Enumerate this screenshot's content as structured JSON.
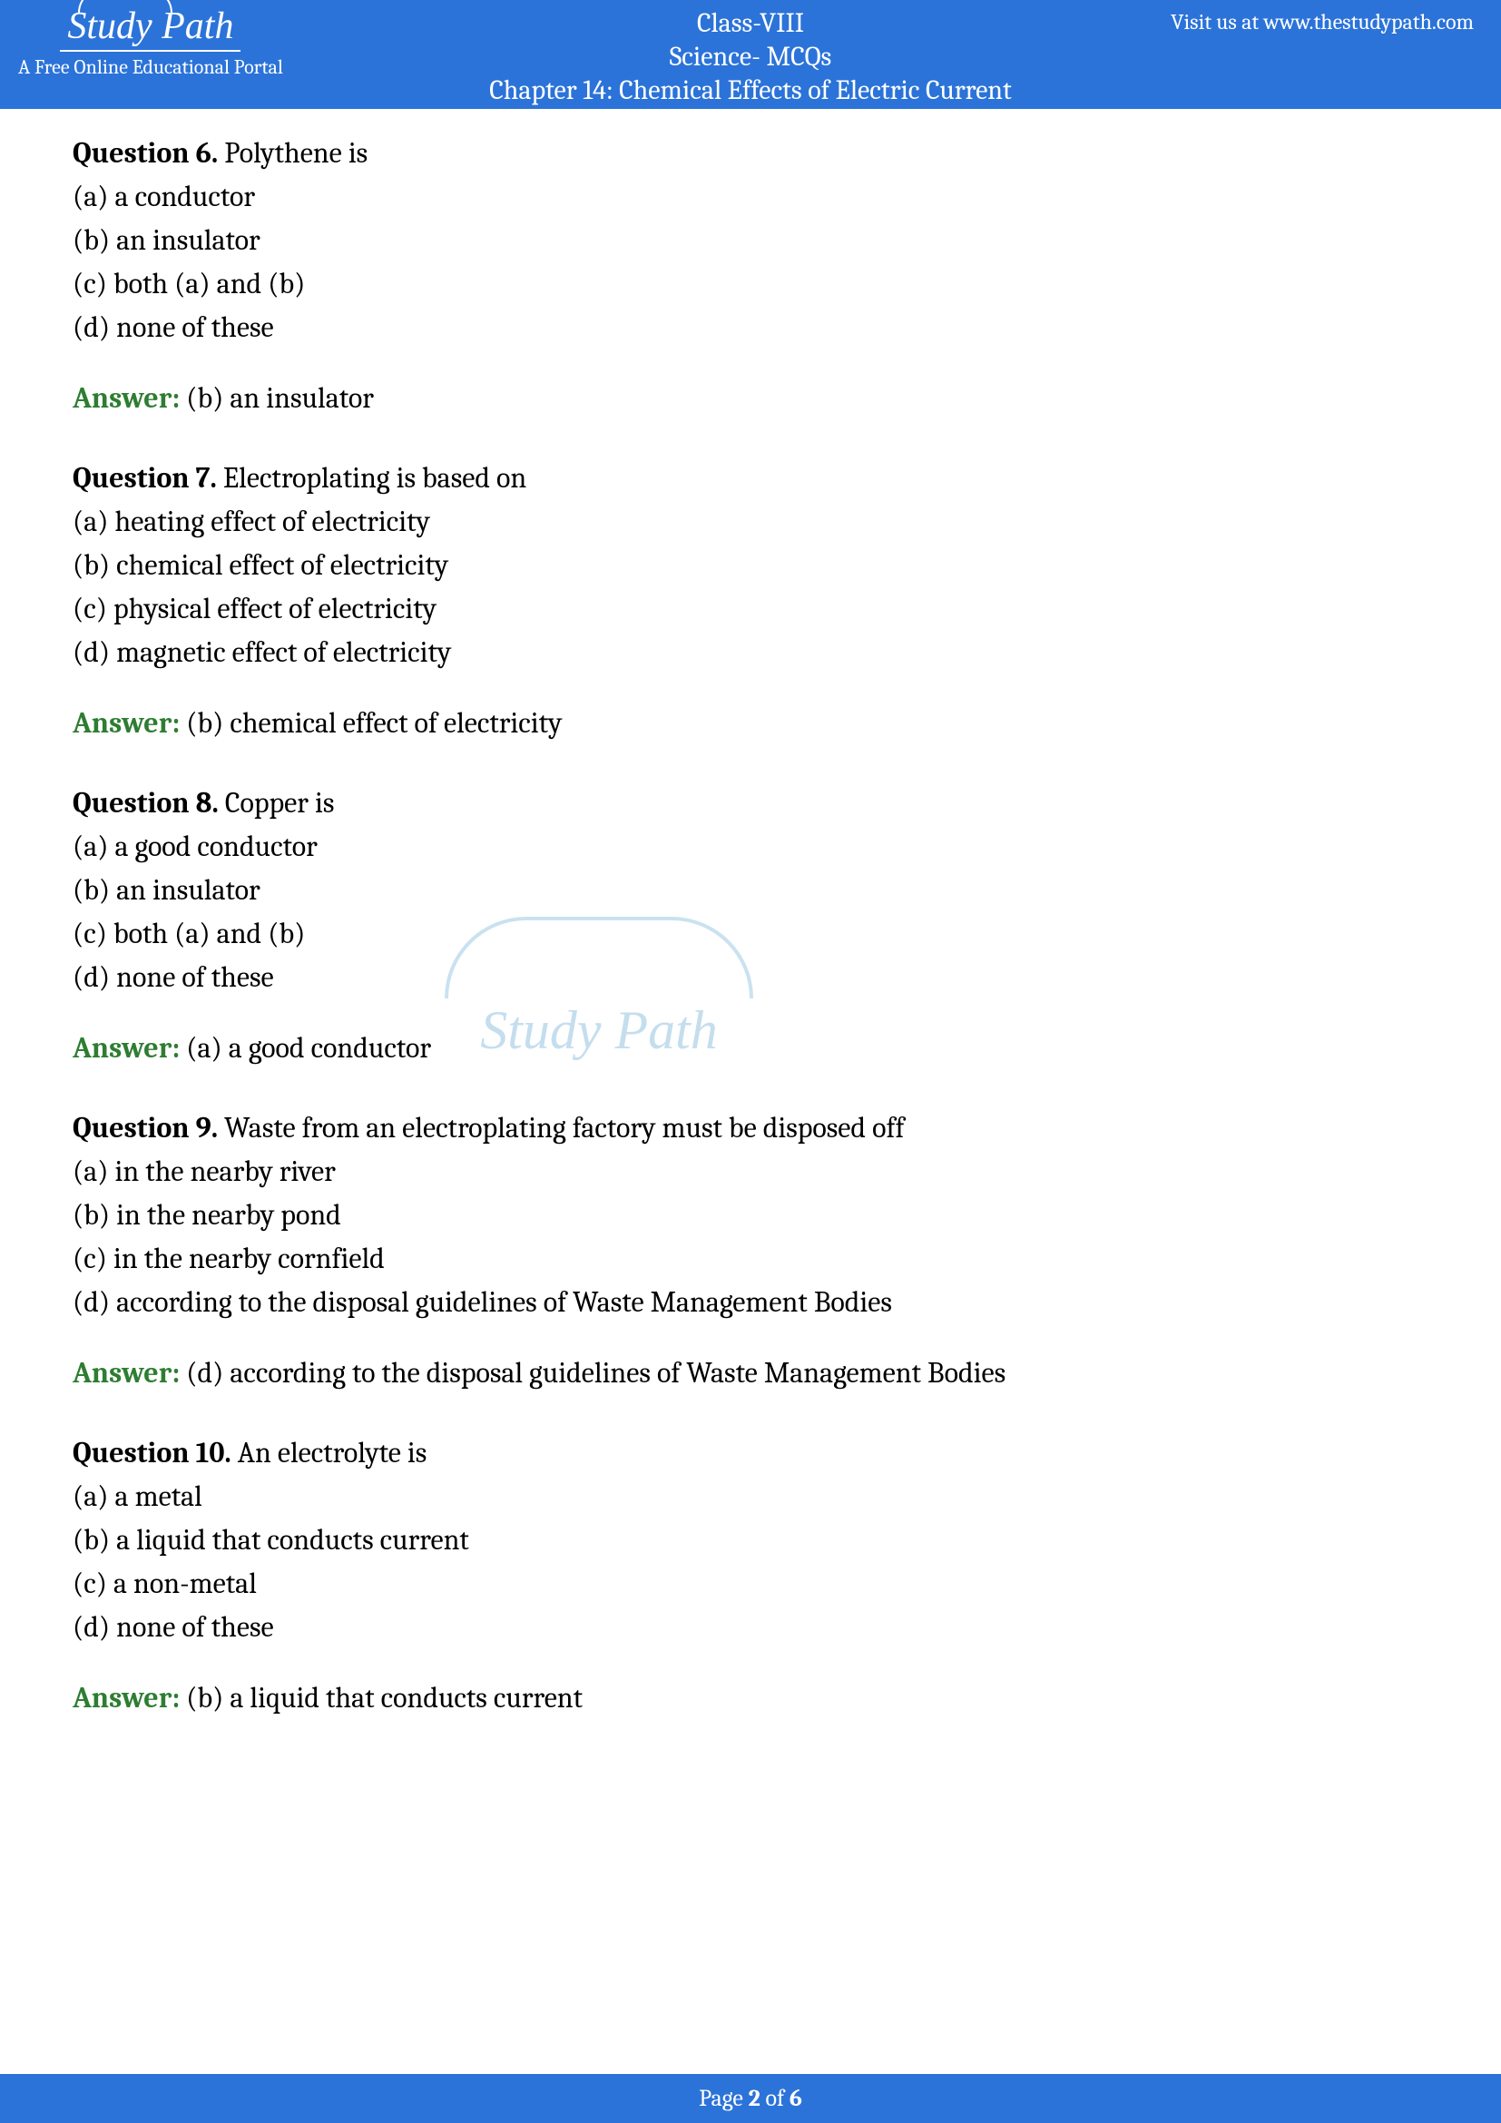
{
  "colors": {
    "header_bg": "#2b73d9",
    "header_text": "#ffffff",
    "body_text": "#000000",
    "answer_label": "#2e7d32",
    "watermark": "#5ba3d0"
  },
  "header": {
    "visit_text": "Visit us at www.thestudypath.com",
    "class_label": "Class-VIII",
    "subject_label": "Science- MCQs",
    "chapter_label": "Chapter 14: Chemical Effects of Electric Current",
    "logo_text": "Study Path",
    "logo_tagline": "A Free Online Educational Portal"
  },
  "watermark": {
    "text": "Study Path"
  },
  "questions": [
    {
      "number": "Question 6.",
      "text": " Polythene is",
      "options": [
        "(a) a conductor",
        "(b) an insulator",
        "(c) both (a) and (b)",
        "(d) none of these"
      ],
      "answer_label": "Answer:",
      "answer_text": " (b) an insulator"
    },
    {
      "number": "Question 7.",
      "text": " Electroplating is based on",
      "options": [
        "(a) heating effect of electricity",
        "(b) chemical effect of electricity",
        "(c) physical effect of electricity",
        "(d) magnetic effect of electricity"
      ],
      "answer_label": "Answer:",
      "answer_text": " (b) chemical effect of electricity"
    },
    {
      "number": "Question 8.",
      "text": " Copper is",
      "options": [
        "(a) a good conductor",
        "(b) an insulator",
        "(c) both (a) and (b)",
        "(d) none of these"
      ],
      "answer_label": "Answer:",
      "answer_text": " (a) a good conductor"
    },
    {
      "number": "Question 9.",
      "text": " Waste from an electroplating factory must be disposed off",
      "options": [
        "(a) in the nearby river",
        "(b) in the nearby pond",
        "(c) in the nearby cornfield",
        "(d) according to the disposal guidelines of Waste Management Bodies"
      ],
      "answer_label": "Answer:",
      "answer_text": " (d) according to the disposal guidelines of Waste Management Bodies"
    },
    {
      "number": "Question 10.",
      "text": " An electrolyte is",
      "options": [
        "(a) a metal",
        "(b) a liquid that conducts current",
        "(c) a non-metal",
        "(d) none of these"
      ],
      "answer_label": "Answer:",
      "answer_text": " (b) a liquid that conducts current"
    }
  ],
  "footer": {
    "prefix": "Page ",
    "current": "2",
    "middle": " of ",
    "total": "6"
  }
}
